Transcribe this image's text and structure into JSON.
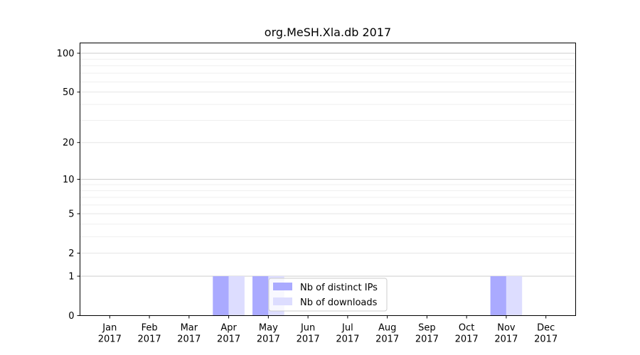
{
  "chart_data": {
    "type": "bar",
    "title": "org.MeSH.Xla.db 2017",
    "xlabel": "",
    "ylabel": "",
    "y_scale": "log1p",
    "ylim": [
      0,
      120
    ],
    "y_ticks": [
      0,
      1,
      2,
      5,
      10,
      20,
      50,
      100
    ],
    "y_tick_labels": [
      "0",
      "1",
      "2",
      "5",
      "10",
      "20",
      "50",
      "100"
    ],
    "categories": [
      "Jan",
      "Feb",
      "Mar",
      "Apr",
      "May",
      "Jun",
      "Jul",
      "Aug",
      "Sep",
      "Oct",
      "Nov",
      "Dec"
    ],
    "category_year": "2017",
    "series": [
      {
        "name": "Nb of distinct IPs",
        "color": "#aaaaff",
        "values": [
          0,
          0,
          0,
          1,
          1,
          0,
          0,
          0,
          0,
          0,
          1,
          0
        ]
      },
      {
        "name": "Nb of downloads",
        "color": "#ddddff",
        "values": [
          0,
          0,
          0,
          1,
          1,
          0,
          0,
          0,
          0,
          0,
          1,
          0
        ]
      }
    ],
    "grid": true,
    "legend_position": "bottom-center"
  }
}
